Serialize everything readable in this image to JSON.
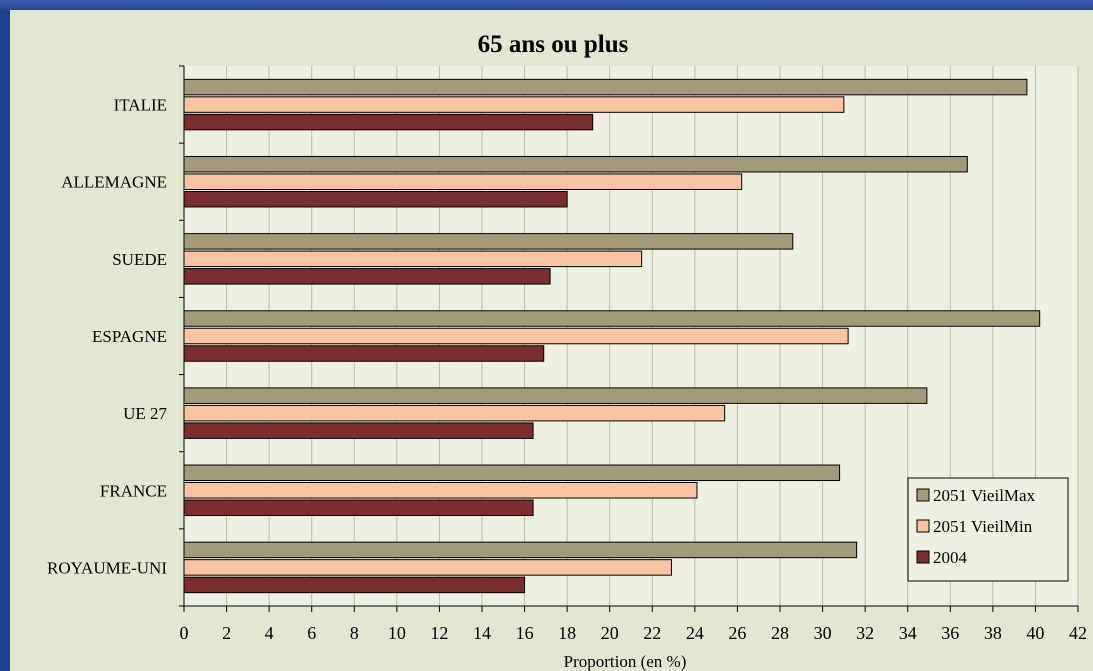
{
  "chart_data": {
    "type": "bar",
    "orientation": "horizontal",
    "title": "65 ans ou plus",
    "xlabel": "Proportion (en %)",
    "ylabel": "",
    "xlim": [
      0,
      42
    ],
    "x_ticks": [
      "0",
      "2",
      "4",
      "6",
      "8",
      "10",
      "12",
      "14",
      "16",
      "18",
      "20",
      "22",
      "24",
      "26",
      "28",
      "30",
      "32",
      "34",
      "36",
      "38",
      "40",
      "42"
    ],
    "grid": "vertical",
    "legend_position": "bottom-right",
    "categories": [
      "ITALIE",
      "ALLEMAGNE",
      "SUEDE",
      "ESPAGNE",
      "UE 27",
      "FRANCE",
      "ROYAUME-UNI"
    ],
    "series": [
      {
        "name": "2051 VieilMax",
        "color": "#a39a7b",
        "values": [
          39.6,
          36.8,
          28.6,
          40.2,
          34.9,
          30.8,
          31.6
        ]
      },
      {
        "name": "2051 VieilMin",
        "color": "#f9c4a4",
        "values": [
          31.0,
          26.2,
          21.5,
          31.2,
          25.4,
          24.1,
          22.9
        ]
      },
      {
        "name": "2004",
        "color": "#7b2e2e",
        "values": [
          19.2,
          18.0,
          17.2,
          16.9,
          16.4,
          16.4,
          16.0
        ]
      }
    ]
  }
}
